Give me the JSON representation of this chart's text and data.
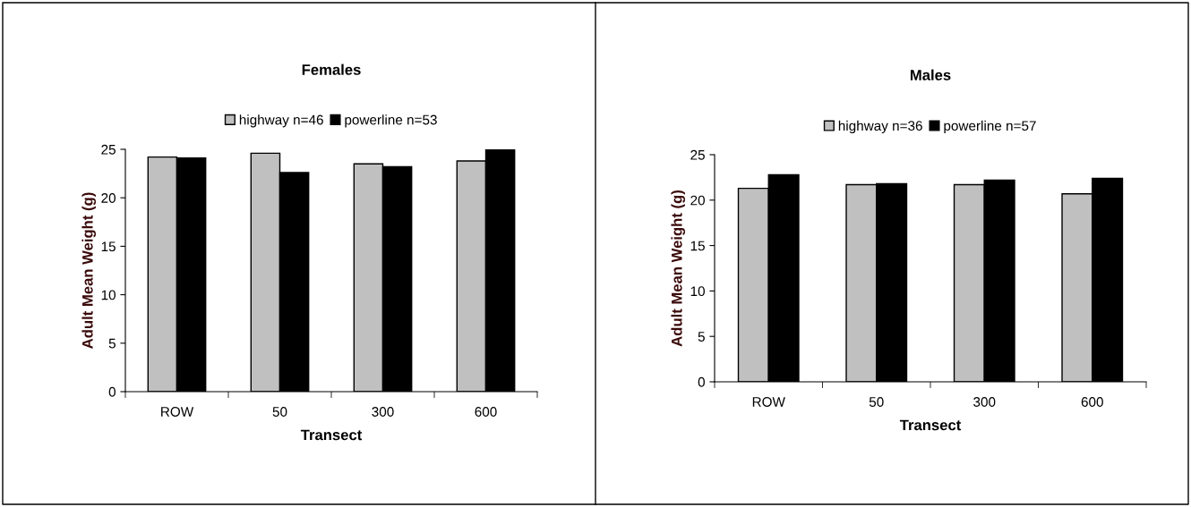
{
  "chart_data": [
    {
      "type": "bar",
      "title": "Females",
      "xlabel": "Transect",
      "ylabel": "Adult Mean Weight (g)",
      "categories": [
        "ROW",
        "50",
        "300",
        "600"
      ],
      "series": [
        {
          "name": "highway n=46",
          "color": "#c0c0c0",
          "values": [
            24.2,
            24.6,
            23.5,
            23.8
          ]
        },
        {
          "name": "powerline n=53",
          "color": "#000000",
          "values": [
            24.1,
            22.6,
            23.2,
            25.0
          ]
        }
      ],
      "ylim": [
        0,
        25
      ],
      "yticks": [
        0,
        5,
        10,
        15,
        20,
        25
      ],
      "grid": false,
      "legend": "top"
    },
    {
      "type": "bar",
      "title": "Males",
      "xlabel": "Transect",
      "ylabel": "Adult Mean Weight (g)",
      "categories": [
        "ROW",
        "50",
        "300",
        "600"
      ],
      "series": [
        {
          "name": "highway n=36",
          "color": "#c0c0c0",
          "values": [
            21.3,
            21.7,
            21.7,
            20.7
          ]
        },
        {
          "name": "powerline n=57",
          "color": "#000000",
          "values": [
            22.8,
            21.8,
            22.2,
            22.4
          ]
        }
      ],
      "ylim": [
        0,
        25
      ],
      "yticks": [
        0,
        5,
        10,
        15,
        20,
        25
      ],
      "grid": false,
      "legend": "top"
    }
  ]
}
